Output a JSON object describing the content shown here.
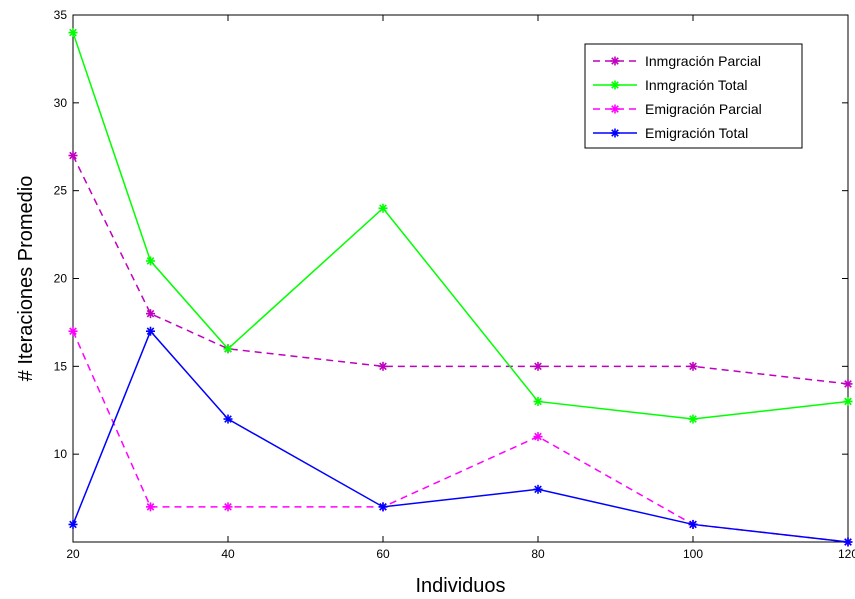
{
  "chart_data": {
    "type": "line",
    "title": "",
    "xlabel": "Individuos",
    "ylabel": "# Iteraciones Promedio",
    "x": [
      20,
      30,
      40,
      60,
      80,
      100,
      120
    ],
    "xlim": [
      20,
      120
    ],
    "ylim": [
      5,
      35
    ],
    "xticks": [
      20,
      40,
      60,
      80,
      100,
      120
    ],
    "xtick_labels": [
      "20",
      "40",
      "60",
      "80",
      "100",
      "120"
    ],
    "yticks": [
      10,
      15,
      20,
      25,
      30,
      35
    ],
    "ytick_labels": [
      "10",
      "15",
      "20",
      "25",
      "30",
      "35"
    ],
    "grid": false,
    "legend_position": "top-right",
    "marker": "asterisk",
    "series": [
      {
        "name": "Inmgración Parcial",
        "color": "#bf00bf",
        "dash": true,
        "values": [
          27,
          18,
          16,
          15,
          15,
          15,
          14
        ]
      },
      {
        "name": "Inmgración Total",
        "color": "#00ff00",
        "dash": false,
        "values": [
          34,
          21,
          16,
          24,
          13,
          12,
          13
        ]
      },
      {
        "name": "Emigración Parcial",
        "color": "#ff00ff",
        "dash": true,
        "values": [
          17,
          7,
          7,
          7,
          11,
          6,
          5
        ]
      },
      {
        "name": "Emigración Total",
        "color": "#0000ff",
        "dash": false,
        "values": [
          6,
          17,
          12,
          7,
          8,
          6,
          5
        ]
      }
    ]
  }
}
